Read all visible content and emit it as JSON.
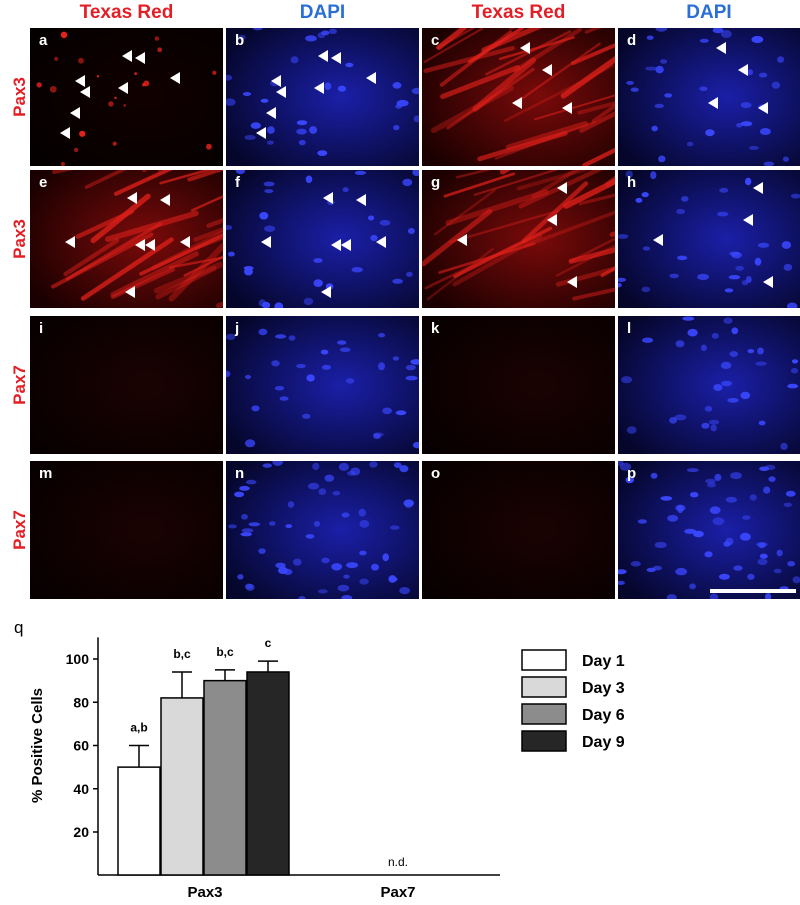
{
  "column_headers": [
    {
      "text": "Texas Red",
      "color": "#e41e26"
    },
    {
      "text": "DAPI",
      "color": "#2a6fd6"
    },
    {
      "text": "Texas Red",
      "color": "#e41e26"
    },
    {
      "text": "DAPI",
      "color": "#2a6fd6"
    }
  ],
  "row_headers": [
    "Pax3",
    "Pax3",
    "Pax7",
    "Pax7"
  ],
  "panels": [
    {
      "label": "a",
      "channel": "red"
    },
    {
      "label": "b",
      "channel": "blue"
    },
    {
      "label": "c",
      "channel": "red"
    },
    {
      "label": "d",
      "channel": "blue"
    },
    {
      "label": "e",
      "channel": "red"
    },
    {
      "label": "f",
      "channel": "blue"
    },
    {
      "label": "g",
      "channel": "red"
    },
    {
      "label": "h",
      "channel": "blue"
    },
    {
      "label": "i",
      "channel": "red"
    },
    {
      "label": "j",
      "channel": "blue"
    },
    {
      "label": "k",
      "channel": "red"
    },
    {
      "label": "l",
      "channel": "blue"
    },
    {
      "label": "m",
      "channel": "red"
    },
    {
      "label": "n",
      "channel": "blue"
    },
    {
      "label": "o",
      "channel": "red"
    },
    {
      "label": "p",
      "channel": "blue"
    }
  ],
  "chart_data": {
    "type": "bar",
    "panel_label": "q",
    "categories": [
      "Pax3",
      "Pax7"
    ],
    "ylabel": "% Positive Cells",
    "ylim": [
      0,
      110
    ],
    "yticks": [
      20,
      40,
      60,
      80,
      100
    ],
    "series": [
      {
        "name": "Day 1",
        "values": [
          50,
          null
        ],
        "errors": [
          10,
          null
        ],
        "color": "#ffffff"
      },
      {
        "name": "Day 3",
        "values": [
          82,
          null
        ],
        "errors": [
          12,
          null
        ],
        "color": "#d9d9d9"
      },
      {
        "name": "Day 6",
        "values": [
          90,
          null
        ],
        "errors": [
          5,
          null
        ],
        "color": "#8c8c8c"
      },
      {
        "name": "Day 9",
        "values": [
          94,
          null
        ],
        "errors": [
          5,
          null
        ],
        "color": "#262626"
      }
    ],
    "significance_labels": [
      "a,b",
      "b,c",
      "b,c",
      "c"
    ],
    "annotations": [
      {
        "category": "Pax7",
        "text": "n.d."
      }
    ],
    "legend_position": "right"
  }
}
